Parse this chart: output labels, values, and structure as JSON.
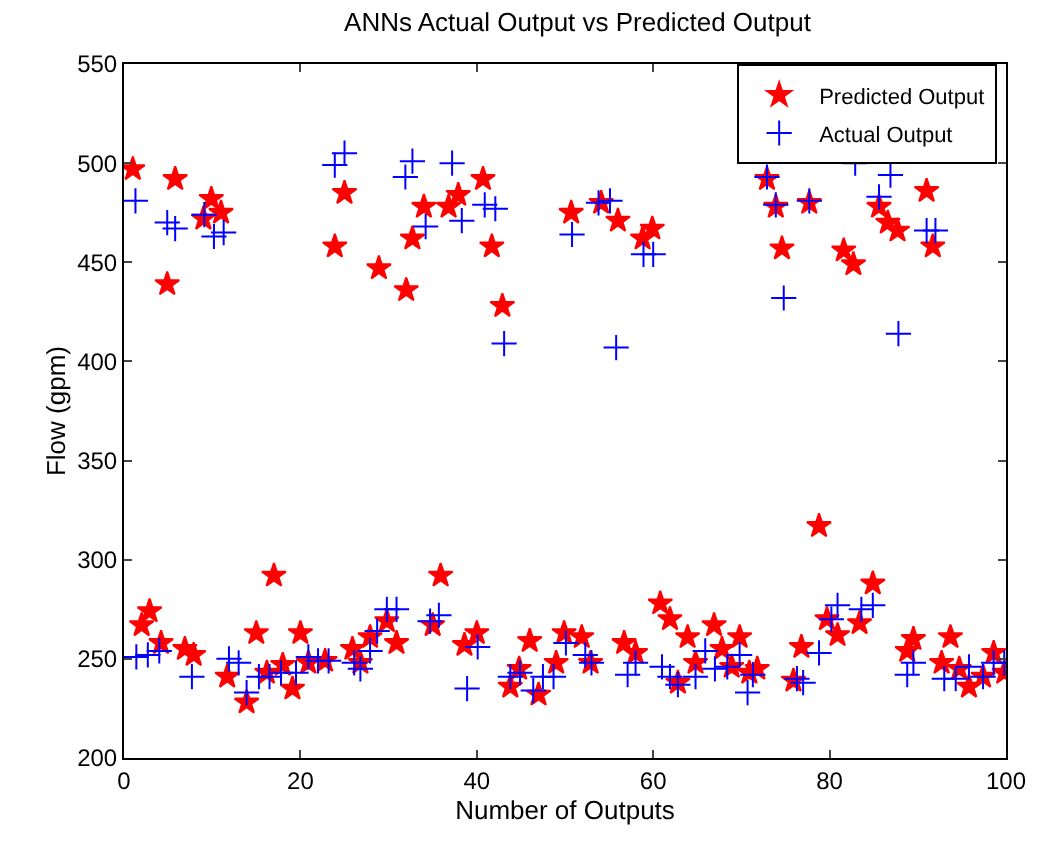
{
  "chart_data": {
    "type": "scatter",
    "title": "ANNs Actual Output vs Predicted Output",
    "xlabel": "Number of Outputs",
    "ylabel": "Flow (gpm)",
    "xlim": [
      0,
      100
    ],
    "xticks": [
      0,
      20,
      40,
      60,
      80,
      100
    ],
    "ylim": [
      200,
      550
    ],
    "yticks": [
      200,
      250,
      300,
      350,
      400,
      450,
      500,
      550
    ],
    "grid": false,
    "legend": "top right",
    "series": [
      {
        "name": "Predicted Output",
        "color": "#ff0000",
        "marker": "star",
        "x": [
          1.0,
          2.0,
          2.9,
          4.2,
          4.9,
          5.8,
          6.9,
          7.9,
          9.0,
          9.9,
          11.0,
          11.7,
          13.9,
          15.0,
          16.2,
          17.0,
          18.0,
          19.1,
          20.0,
          20.9,
          22.8,
          23.9,
          25.0,
          25.9,
          26.8,
          27.9,
          28.9,
          29.8,
          30.9,
          32.0,
          32.7,
          34.0,
          35.0,
          35.9,
          36.8,
          37.9,
          38.6,
          40.0,
          40.7,
          41.7,
          42.9,
          43.8,
          44.8,
          46.0,
          47.0,
          49.0,
          49.9,
          50.7,
          51.9,
          52.9,
          54.1,
          56.0,
          56.7,
          58.0,
          58.8,
          59.9,
          60.8,
          61.9,
          62.8,
          63.9,
          64.8,
          66.9,
          67.8,
          68.9,
          69.8,
          70.9,
          71.8,
          72.9,
          73.9,
          74.6,
          75.9,
          76.8,
          77.7,
          78.8,
          79.7,
          80.9,
          81.6,
          82.7,
          83.4,
          84.9,
          85.6,
          86.6,
          87.7,
          88.8,
          89.5,
          91.0,
          91.7,
          92.7,
          93.7,
          94.7,
          95.8,
          97.4,
          98.6,
          99.8
        ],
        "values": [
          497,
          267,
          274,
          258,
          439,
          492,
          255,
          252,
          472,
          482,
          475,
          241,
          228,
          263,
          243,
          292,
          247,
          235,
          263,
          248,
          249,
          458,
          485,
          255,
          248,
          261,
          447,
          269,
          258,
          436,
          462,
          478,
          267,
          292,
          478,
          484,
          257,
          263,
          492,
          458,
          428,
          236,
          245,
          259,
          232,
          248,
          263,
          475,
          261,
          248,
          480,
          471,
          258,
          253,
          462,
          467,
          278,
          270,
          238,
          261,
          248,
          267,
          255,
          246,
          261,
          243,
          245,
          492,
          478,
          457,
          239,
          256,
          480,
          317,
          270,
          262,
          456,
          449,
          268,
          288,
          478,
          470,
          466,
          254,
          260,
          486,
          458,
          248,
          261,
          245,
          236,
          241,
          253,
          243
        ]
      },
      {
        "name": "Actual Output",
        "color": "#0000ff",
        "marker": "cross",
        "x": [
          1.3,
          1.4,
          2.7,
          4.0,
          4.9,
          5.8,
          7.7,
          9.1,
          10.2,
          11.3,
          11.9,
          13.0,
          13.9,
          15.3,
          16.5,
          17.8,
          19.5,
          20.9,
          22.0,
          23.2,
          23.9,
          25.0,
          26.1,
          26.8,
          27.9,
          28.7,
          29.8,
          30.9,
          31.9,
          32.7,
          34.2,
          34.7,
          35.7,
          37.2,
          38.3,
          38.9,
          40.1,
          40.9,
          42.1,
          43.1,
          43.8,
          44.9,
          46.4,
          47.5,
          48.7,
          50.1,
          50.8,
          52.3,
          53.0,
          53.8,
          55.1,
          55.8,
          57.1,
          58.0,
          58.9,
          60.0,
          61.0,
          61.9,
          62.8,
          64.8,
          65.9,
          67.0,
          68.4,
          69.8,
          70.7,
          71.3,
          72.9,
          73.9,
          74.8,
          76.3,
          77.0,
          77.7,
          78.8,
          80.2,
          80.9,
          82.9,
          83.6,
          84.9,
          85.6,
          86.9,
          87.8,
          88.8,
          89.5,
          91.0,
          92.0,
          93.0,
          94.3,
          95.8,
          97.4,
          98.6,
          99.8
        ],
        "values": [
          481,
          251,
          252,
          254,
          470,
          467,
          241,
          474,
          463,
          465,
          250,
          248,
          233,
          241,
          241,
          243,
          243,
          251,
          249,
          249,
          499,
          505,
          248,
          245,
          254,
          264,
          275,
          275,
          493,
          501,
          468,
          269,
          272,
          500,
          471,
          235,
          256,
          479,
          477,
          409,
          241,
          243,
          234,
          241,
          241,
          258,
          464,
          252,
          248,
          480,
          481,
          407,
          242,
          248,
          454,
          454,
          246,
          241,
          237,
          241,
          254,
          245,
          246,
          252,
          233,
          242,
          493,
          479,
          432,
          240,
          238,
          481,
          253,
          270,
          277,
          500,
          275,
          277,
          483,
          494,
          414,
          242,
          248,
          466,
          466,
          240,
          240,
          246,
          241,
          248,
          248
        ]
      }
    ]
  }
}
